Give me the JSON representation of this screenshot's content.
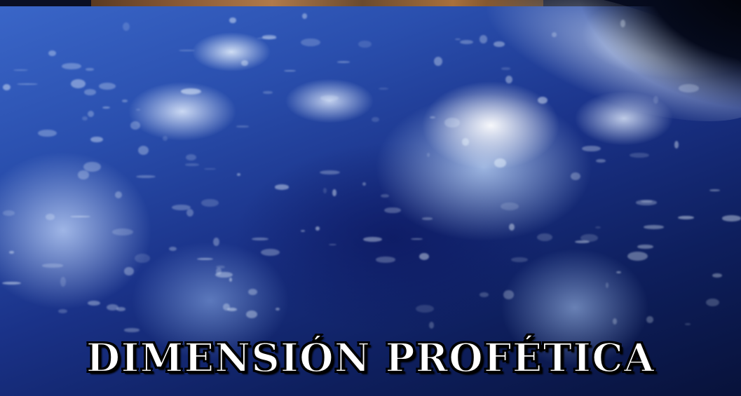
{
  "image": {
    "title_text": "DIMENSIÓN PROFÉTICA",
    "subject": "earth-from-space",
    "colors": {
      "ocean_dark": "#0e1f5e",
      "ocean_light": "#3a66c8",
      "cloud": "#ebf5ff",
      "title_fill": "#ffffff",
      "title_outline": "#000000",
      "top_strip": "#8a5a36"
    }
  }
}
